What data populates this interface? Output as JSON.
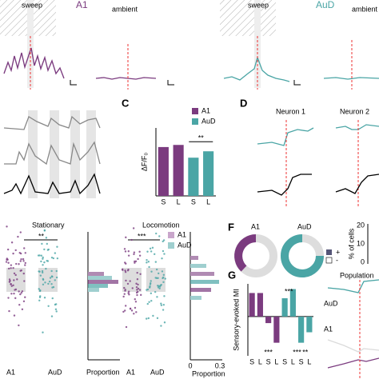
{
  "figure": {
    "top_left": {
      "stimulus": "sweep",
      "area": "A1",
      "condition": "ambient"
    },
    "top_right": {
      "stimulus": "sweep",
      "area": "AuD",
      "condition": "ambient"
    },
    "panel_c": "C",
    "panel_d": "D",
    "neuron1": "Neuron 1",
    "neuron2": "Neuron 2",
    "stationary": "Stationary",
    "locomotion": "Locomotion",
    "sig_stat": "**",
    "sig_loco": "***",
    "x_a1_1": "A1",
    "x_aud_1": "AuD",
    "prop_1": "Proportion",
    "x_a1_2": "A1",
    "x_aud_2": "AuD",
    "prop_2": "Proportion",
    "hist_ticks": [
      "0",
      "0.3"
    ],
    "legend_a1": "A1",
    "legend_aud": "AuD",
    "panel_f": "F",
    "f_a1": "A1",
    "f_aud": "AuD",
    "f_ylabel": "% of cells",
    "f_ticks": [
      "20",
      "10",
      "0"
    ],
    "f_plus": "+",
    "f_minus": "-",
    "panel_g": "G",
    "population": "Population",
    "pop_aud": "AuD",
    "pop_a1": "A1"
  },
  "chart_data": [
    {
      "type": "bar",
      "ylabel": "ΔF/F₀",
      "categories": [
        "S",
        "L",
        "S",
        "L"
      ],
      "values": [
        0.115,
        0.12,
        0.09,
        0.105
      ],
      "colors": [
        "#7b3b7f",
        "#7b3b7f",
        "#4aa5a5",
        "#4aa5a5"
      ],
      "legend": [
        {
          "name": "A1",
          "color": "#7b3b7f"
        },
        {
          "name": "AuD",
          "color": "#4aa5a5"
        }
      ],
      "ylim": [
        0,
        0.16
      ],
      "annotation": "**"
    },
    {
      "type": "bar",
      "ylabel": "Sensory-evoked MI",
      "categories": [
        "S",
        "L",
        "S",
        "L",
        "S",
        "L",
        "S",
        "L"
      ],
      "values": [
        0.18,
        0.18,
        -0.05,
        -0.2,
        0.14,
        0.21,
        -0.2,
        -0.12
      ],
      "colors": [
        "#7b3b7f",
        "#7b3b7f",
        "#7b3b7f",
        "#7b3b7f",
        "#4aa5a5",
        "#4aa5a5",
        "#4aa5a5",
        "#4aa5a5"
      ],
      "ylim": [
        -0.3,
        0.25
      ],
      "annotations": [
        "***",
        "***",
        "***",
        "**"
      ]
    }
  ]
}
